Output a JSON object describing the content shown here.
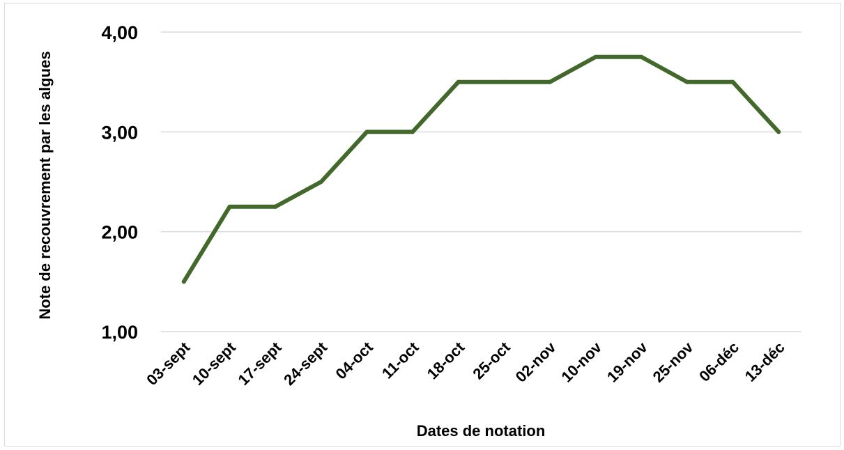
{
  "chart_data": {
    "type": "line",
    "title": "",
    "xlabel": "Dates de notation",
    "ylabel": "Note de recouvrement par les algues",
    "categories": [
      "03-sept",
      "10-sept",
      "17-sept",
      "24-sept",
      "04-oct",
      "11-oct",
      "18-oct",
      "25-oct",
      "02-nov",
      "10-nov",
      "19-nov",
      "25-nov",
      "06-déc",
      "13-déc"
    ],
    "series": [
      {
        "values": [
          1.5,
          2.25,
          2.25,
          2.5,
          3.0,
          3.0,
          3.5,
          3.5,
          3.5,
          3.75,
          3.75,
          3.5,
          3.5,
          3.0
        ],
        "color": "#43682b"
      }
    ],
    "ylim": [
      1,
      4
    ],
    "yticks": [
      1,
      2,
      3,
      4
    ],
    "ytick_labels": [
      "1,00",
      "2,00",
      "3,00",
      "4,00"
    ],
    "grid": true,
    "legend": "none"
  }
}
